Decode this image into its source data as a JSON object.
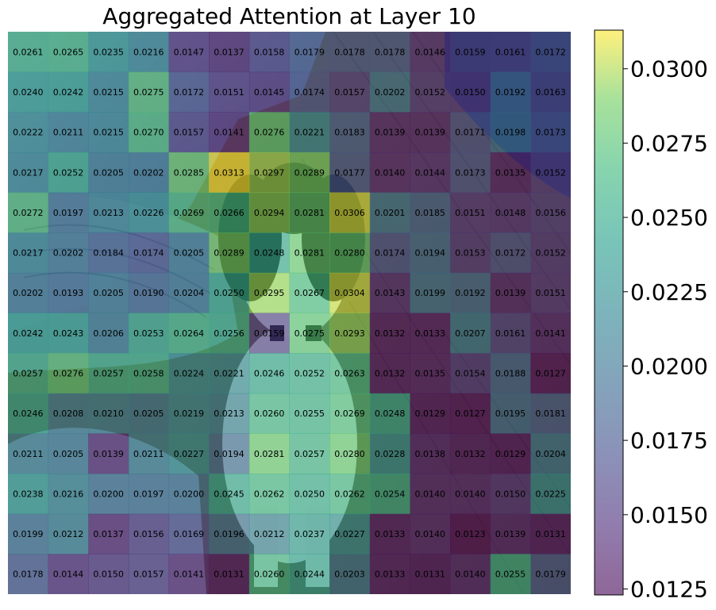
{
  "chart_data": {
    "type": "heatmap",
    "title": "Aggregated Attention at Layer 10",
    "rows": 14,
    "cols": 14,
    "values": [
      [
        0.0261,
        0.0265,
        0.0235,
        0.0216,
        0.0147,
        0.0137,
        0.0158,
        0.0179,
        0.0178,
        0.0178,
        0.0146,
        0.0159,
        0.0161,
        0.0172
      ],
      [
        0.024,
        0.0242,
        0.0215,
        0.0275,
        0.0172,
        0.0151,
        0.0145,
        0.0174,
        0.0157,
        0.0202,
        0.0152,
        0.015,
        0.0192,
        0.0163
      ],
      [
        0.0222,
        0.0211,
        0.0215,
        0.027,
        0.0157,
        0.0141,
        0.0276,
        0.0221,
        0.0183,
        0.0139,
        0.0139,
        0.0171,
        0.0198,
        0.0173
      ],
      [
        0.0217,
        0.0252,
        0.0205,
        0.0202,
        0.0285,
        0.0313,
        0.0297,
        0.0289,
        0.0177,
        0.014,
        0.0144,
        0.0173,
        0.0135,
        0.0152
      ],
      [
        0.0272,
        0.0197,
        0.0213,
        0.0226,
        0.0269,
        0.0266,
        0.0294,
        0.0281,
        0.0306,
        0.0201,
        0.0185,
        0.0151,
        0.0148,
        0.0156
      ],
      [
        0.0217,
        0.0202,
        0.0184,
        0.0174,
        0.0205,
        0.0289,
        0.0248,
        0.0281,
        0.028,
        0.0174,
        0.0194,
        0.0153,
        0.0172,
        0.0152
      ],
      [
        0.0202,
        0.0193,
        0.0205,
        0.019,
        0.0204,
        0.025,
        0.0295,
        0.0267,
        0.0304,
        0.0143,
        0.0199,
        0.0192,
        0.0139,
        0.0151
      ],
      [
        0.0242,
        0.0243,
        0.0206,
        0.0253,
        0.0264,
        0.0256,
        0.0159,
        0.0275,
        0.0293,
        0.0132,
        0.0133,
        0.0207,
        0.0161,
        0.0141
      ],
      [
        0.0257,
        0.0276,
        0.0257,
        0.0258,
        0.0224,
        0.0221,
        0.0246,
        0.0252,
        0.0263,
        0.0132,
        0.0135,
        0.0154,
        0.0188,
        0.0127
      ],
      [
        0.0246,
        0.0208,
        0.021,
        0.0205,
        0.0219,
        0.0213,
        0.026,
        0.0255,
        0.0269,
        0.0248,
        0.0129,
        0.0127,
        0.0195,
        0.0181
      ],
      [
        0.0211,
        0.0205,
        0.0139,
        0.0211,
        0.0227,
        0.0194,
        0.0281,
        0.0257,
        0.028,
        0.0228,
        0.0138,
        0.0132,
        0.0129,
        0.0204
      ],
      [
        0.0238,
        0.0216,
        0.02,
        0.0197,
        0.02,
        0.0245,
        0.0262,
        0.025,
        0.0262,
        0.0254,
        0.014,
        0.014,
        0.015,
        0.0225
      ],
      [
        0.0199,
        0.0212,
        0.0137,
        0.0156,
        0.0169,
        0.0196,
        0.0212,
        0.0237,
        0.0227,
        0.0133,
        0.014,
        0.0123,
        0.0139,
        0.0131
      ],
      [
        0.0178,
        0.0144,
        0.015,
        0.0157,
        0.0141,
        0.0131,
        0.026,
        0.0244,
        0.0203,
        0.0133,
        0.0131,
        0.014,
        0.0255,
        0.0179
      ]
    ],
    "colorbar": {
      "min": 0.0123,
      "max": 0.0313,
      "ticks": [
        "0.0125",
        "0.0150",
        "0.0175",
        "0.0200",
        "0.0225",
        "0.0250",
        "0.0275",
        "0.0300"
      ]
    },
    "colormap": "viridis",
    "overlay_alpha": 0.6,
    "background": "photo of a black-and-white puppy sitting on a wooden floor, blankets at left"
  }
}
